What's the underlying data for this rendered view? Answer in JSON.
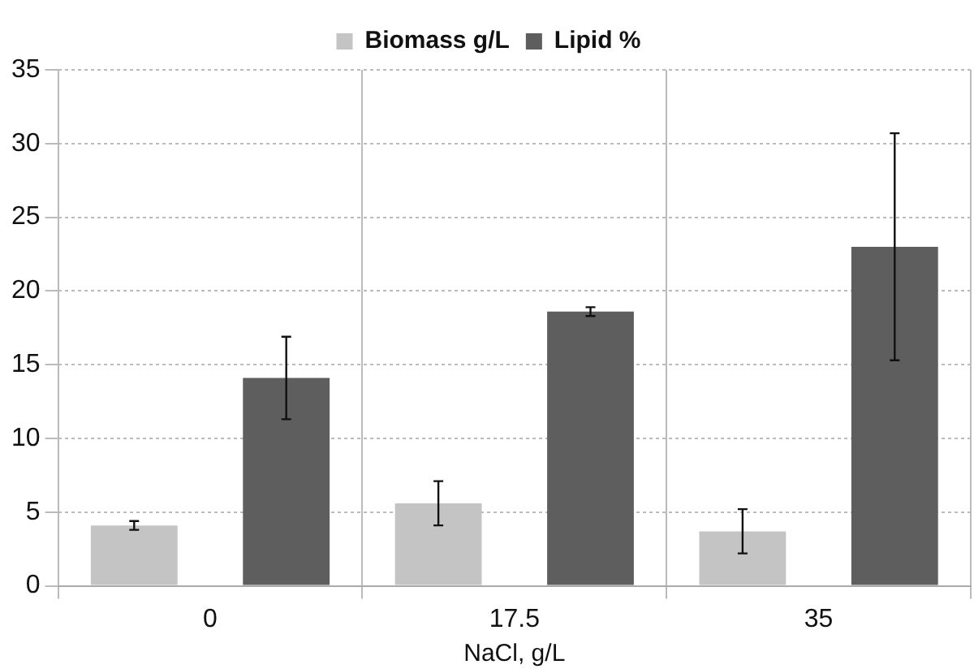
{
  "chart_data": {
    "type": "bar",
    "xlabel": "NaCl, g/L",
    "categories": [
      "0",
      "17.5",
      "35"
    ],
    "series": [
      {
        "name": "Biomass g/L",
        "color": "#c4c4c4",
        "values": [
          4.1,
          5.6,
          3.7
        ],
        "errors": [
          0.3,
          1.5,
          1.5
        ]
      },
      {
        "name": "Lipid %",
        "color": "#5e5e5e",
        "values": [
          14.1,
          18.6,
          23.0
        ],
        "errors": [
          2.8,
          0.3,
          7.7
        ]
      }
    ],
    "ylim": [
      0,
      35
    ],
    "yticks": [
      0,
      5,
      10,
      15,
      20,
      25,
      30,
      35
    ],
    "grid": true,
    "legend": "top"
  }
}
